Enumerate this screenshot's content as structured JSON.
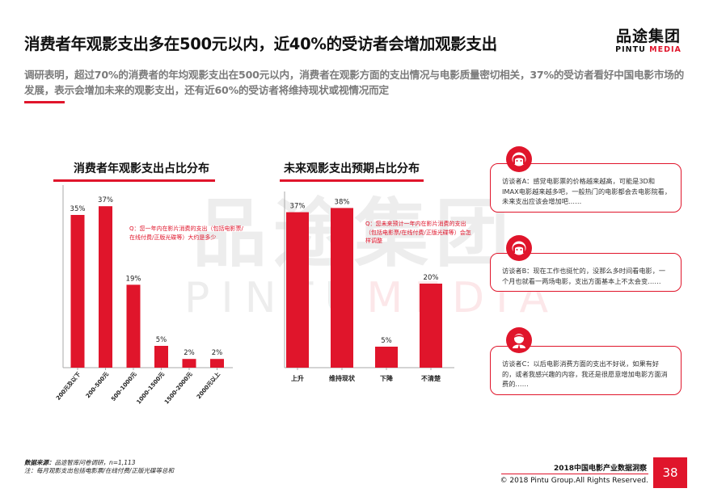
{
  "header": {
    "title": "消费者年观影支出多在500元以内，近40%的受访者会增加观影支出",
    "subtitle": "调研表明，超过70%的消费者的年均观影支出在500元以内，消费者在观影方面的支出情况与电影质量密切相关，37%的受访者看好中国电影市场的发展，表示会增加未来的观影支出，还有近60%的受访者将维持现状或视情况而定"
  },
  "logo": {
    "cn": "品途集团",
    "en_a": "PINTU",
    "en_b": "MEDIA"
  },
  "watermark": {
    "cn": "品途集团",
    "en_a": "PINTU",
    "en_b": "MEDIA"
  },
  "colors": {
    "accent": "#e0152b",
    "axis": "#aaaaaa"
  },
  "chart_data": [
    {
      "type": "bar",
      "title": "消费者年观影支出占比分布",
      "categories": [
        "200元及以下",
        "200-500元",
        "500-1000元",
        "1000-1500元",
        "1500-2000元",
        "2000元以上"
      ],
      "values": [
        35,
        37,
        19,
        5,
        2,
        2
      ],
      "value_labels": [
        "35%",
        "37%",
        "19%",
        "5%",
        "2%",
        "2%"
      ],
      "ylim": [
        0,
        40
      ],
      "grid": false,
      "note": "Q：您一年内在影片消费的支出（包括电影票/在线付费/正版光碟等）大约是多少"
    },
    {
      "type": "bar",
      "title": "未来观影支出预期占比分布",
      "categories": [
        "上升",
        "维持现状",
        "下降",
        "不清楚"
      ],
      "values": [
        37,
        38,
        5,
        20
      ],
      "value_labels": [
        "37%",
        "38%",
        "5%",
        "20%"
      ],
      "ylim": [
        0,
        40
      ],
      "grid": false,
      "note": "Q：您未来预计一年内在影片消费的支出（包括电影票/在线付费/正版光碟等）会怎样调整"
    }
  ],
  "interviews": [
    {
      "icon": "female-avatar-icon",
      "text": "访谈者A：感觉电影票的价格越来越高，可能是3D和IMAX电影越来越多吧，一般热门的电影都会去电影院看，未来支出应该会增加吧……"
    },
    {
      "icon": "female-avatar-icon",
      "text": "访谈者B：现在工作也挺忙的，没那么多时间看电影，一个月也就看一两场电影，支出方面基本上不太会变……"
    },
    {
      "icon": "male-avatar-icon",
      "text": "访谈者C：以后电影消费方面的支出不好说，如果有好的，或者我感兴趣的内容，我还是很愿意增加电影方面消费的……"
    }
  ],
  "footer": {
    "source_label": "数据来源：",
    "source_text": "品途智库问卷调研，n=1,113",
    "note": "注：每月观影支出包括电影票/在线付费/正版光碟等总和",
    "report_name": "2018中国电影产业数据洞察",
    "copyright": "© 2018 Pintu Group.All Rights Reserved.",
    "page_number": "38"
  }
}
